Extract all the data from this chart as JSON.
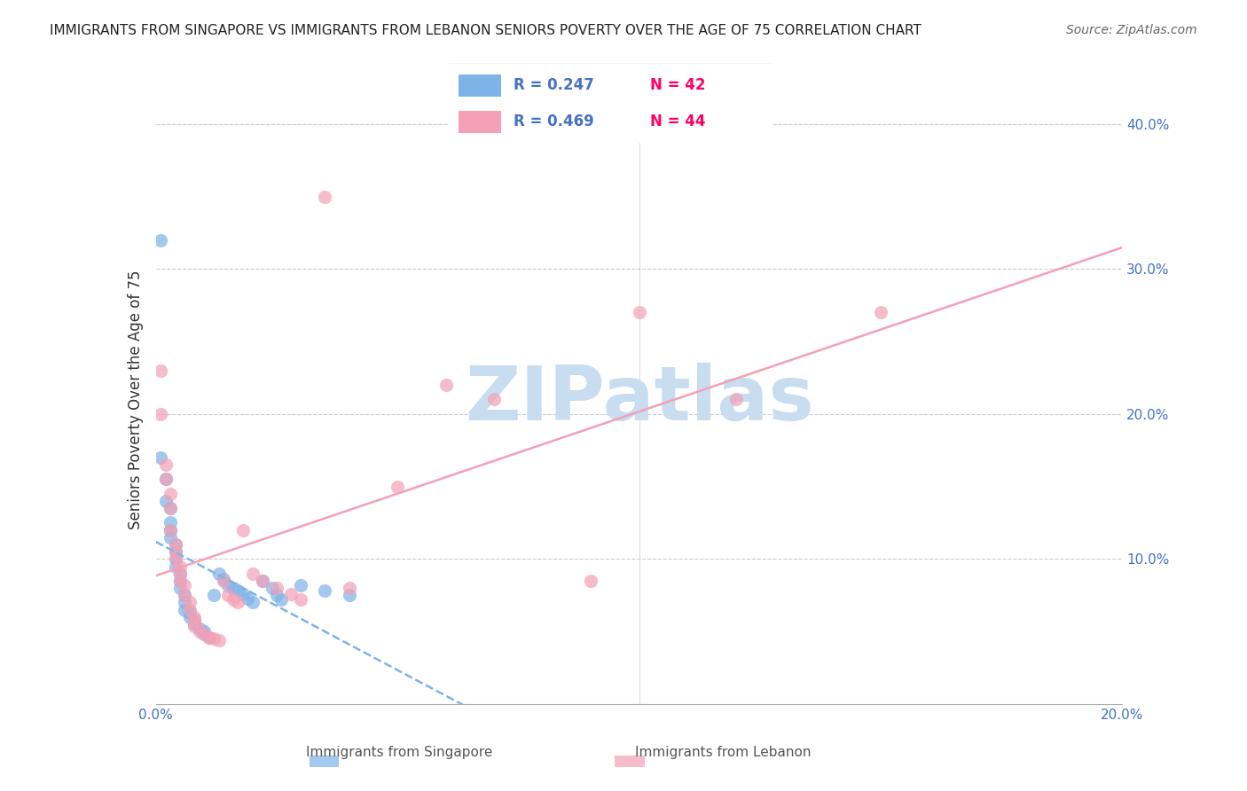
{
  "title": "IMMIGRANTS FROM SINGAPORE VS IMMIGRANTS FROM LEBANON SENIORS POVERTY OVER THE AGE OF 75 CORRELATION CHART",
  "source": "Source: ZipAtlas.com",
  "xlabel_bottom": "",
  "ylabel": "Seniors Poverty Over the Age of 75",
  "xlim": [
    0.0,
    0.2
  ],
  "ylim": [
    0.0,
    0.42
  ],
  "xticks": [
    0.0,
    0.02,
    0.04,
    0.06,
    0.08,
    0.1,
    0.12,
    0.14,
    0.16,
    0.18,
    0.2
  ],
  "xtick_labels": [
    "0.0%",
    "",
    "",
    "",
    "",
    "",
    "",
    "",
    "",
    "",
    "20.0%"
  ],
  "yticks_right": [
    0.1,
    0.2,
    0.3,
    0.4
  ],
  "ytick_right_labels": [
    "10.0%",
    "20.0%",
    "30.0%",
    "40.0%"
  ],
  "singapore_color": "#7eb3e8",
  "lebanon_color": "#f4a0b5",
  "singapore_R": 0.247,
  "singapore_N": 42,
  "lebanon_R": 0.469,
  "lebanon_N": 44,
  "legend_R_singapore": "R = 0.247",
  "legend_N_singapore": "N = 42",
  "legend_R_lebanon": "R = 0.469",
  "legend_N_lebanon": "N = 44",
  "watermark": "ZIPatlas",
  "watermark_color": "#c8ddf0",
  "singapore_x": [
    0.001,
    0.002,
    0.002,
    0.003,
    0.003,
    0.003,
    0.003,
    0.004,
    0.004,
    0.004,
    0.004,
    0.005,
    0.005,
    0.005,
    0.006,
    0.006,
    0.006,
    0.007,
    0.007,
    0.008,
    0.008,
    0.009,
    0.01,
    0.01,
    0.011,
    0.012,
    0.013,
    0.014,
    0.015,
    0.016,
    0.017,
    0.018,
    0.019,
    0.02,
    0.022,
    0.024,
    0.025,
    0.026,
    0.03,
    0.035,
    0.04,
    0.001
  ],
  "singapore_y": [
    0.17,
    0.155,
    0.14,
    0.135,
    0.125,
    0.12,
    0.115,
    0.11,
    0.105,
    0.1,
    0.095,
    0.09,
    0.085,
    0.08,
    0.075,
    0.07,
    0.065,
    0.063,
    0.06,
    0.058,
    0.055,
    0.052,
    0.05,
    0.048,
    0.046,
    0.075,
    0.09,
    0.086,
    0.082,
    0.08,
    0.078,
    0.076,
    0.073,
    0.07,
    0.085,
    0.08,
    0.075,
    0.072,
    0.082,
    0.078,
    0.075,
    0.32
  ],
  "lebanon_x": [
    0.001,
    0.001,
    0.002,
    0.002,
    0.003,
    0.003,
    0.003,
    0.004,
    0.004,
    0.004,
    0.005,
    0.005,
    0.005,
    0.006,
    0.006,
    0.007,
    0.007,
    0.008,
    0.008,
    0.008,
    0.009,
    0.01,
    0.011,
    0.012,
    0.013,
    0.014,
    0.015,
    0.016,
    0.017,
    0.018,
    0.02,
    0.022,
    0.025,
    0.028,
    0.03,
    0.035,
    0.04,
    0.05,
    0.06,
    0.07,
    0.09,
    0.1,
    0.12,
    0.15
  ],
  "lebanon_y": [
    0.23,
    0.2,
    0.165,
    0.155,
    0.145,
    0.135,
    0.12,
    0.11,
    0.105,
    0.1,
    0.095,
    0.09,
    0.085,
    0.082,
    0.075,
    0.07,
    0.065,
    0.06,
    0.057,
    0.054,
    0.05,
    0.048,
    0.046,
    0.045,
    0.044,
    0.085,
    0.075,
    0.072,
    0.07,
    0.12,
    0.09,
    0.085,
    0.08,
    0.076,
    0.072,
    0.35,
    0.08,
    0.15,
    0.22,
    0.21,
    0.085,
    0.27,
    0.21,
    0.27
  ]
}
